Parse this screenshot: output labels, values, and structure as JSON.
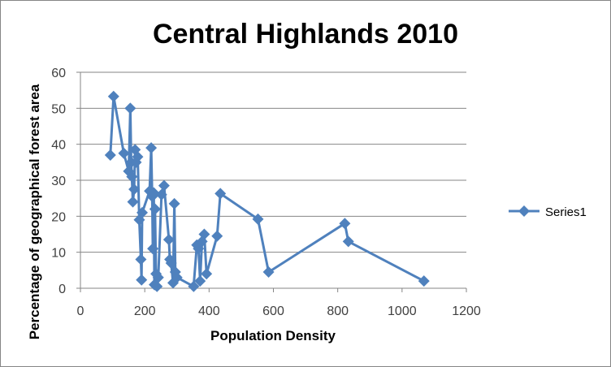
{
  "chart_data": {
    "type": "scatter",
    "title": "Central Highlands 2010",
    "xlabel": "Population Density",
    "ylabel": "Percentage of geographical forest area",
    "xlim": [
      0,
      1200
    ],
    "ylim": [
      0,
      60
    ],
    "xticks": [
      0,
      200,
      400,
      600,
      800,
      1000,
      1200
    ],
    "yticks": [
      0,
      10,
      20,
      30,
      40,
      50,
      60
    ],
    "grid": "horizontal",
    "legend": "right",
    "color": "#4f81bd",
    "series": [
      {
        "name": "Series1",
        "points": [
          [
            93,
            37
          ],
          [
            103,
            53.3
          ],
          [
            135,
            37.5
          ],
          [
            150,
            32.5
          ],
          [
            155,
            50
          ],
          [
            158,
            35
          ],
          [
            160,
            31
          ],
          [
            163,
            24
          ],
          [
            167,
            27.5
          ],
          [
            170,
            38.5
          ],
          [
            173,
            35
          ],
          [
            178,
            36.5
          ],
          [
            183,
            19
          ],
          [
            188,
            8
          ],
          [
            190,
            2.3
          ],
          [
            192,
            21
          ],
          [
            215,
            27
          ],
          [
            220,
            39
          ],
          [
            223,
            25.5
          ],
          [
            225,
            11
          ],
          [
            228,
            26.5
          ],
          [
            230,
            1
          ],
          [
            232,
            22
          ],
          [
            235,
            4
          ],
          [
            238,
            0.5
          ],
          [
            242,
            3
          ],
          [
            252,
            26
          ],
          [
            260,
            28.5
          ],
          [
            275,
            13.5
          ],
          [
            278,
            8
          ],
          [
            282,
            7
          ],
          [
            288,
            1.5
          ],
          [
            292,
            23.5
          ],
          [
            295,
            4.5
          ],
          [
            300,
            3
          ],
          [
            352,
            0.5
          ],
          [
            362,
            12
          ],
          [
            367,
            11
          ],
          [
            372,
            2
          ],
          [
            378,
            13
          ],
          [
            385,
            15
          ],
          [
            392,
            4
          ],
          [
            425,
            14.5
          ],
          [
            435,
            26.3
          ],
          [
            552,
            19.2
          ],
          [
            585,
            4.5
          ],
          [
            822,
            18
          ],
          [
            833,
            13
          ],
          [
            1068,
            2
          ]
        ]
      }
    ]
  }
}
